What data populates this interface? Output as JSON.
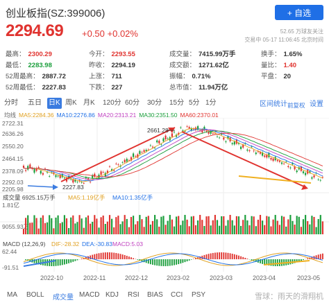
{
  "header": {
    "title": "创业板指(SZ:399006)",
    "follow_label": "+ 自选",
    "price": "2294.69",
    "change": "+0.50 +0.02%",
    "meta_line1": "52.65 万球友关注",
    "meta_line2": "交易中 05-17 11:06:45 北京时间"
  },
  "stats": [
    [
      [
        "最高：",
        "2300.29",
        "red"
      ],
      [
        "今开：",
        "2293.55",
        "red"
      ],
      [
        "成交量：",
        "7415.99万手",
        ""
      ],
      [
        "换手：",
        "1.65%",
        ""
      ]
    ],
    [
      [
        "最低：",
        "2283.98",
        "green"
      ],
      [
        "昨收：",
        "2294.19",
        ""
      ],
      [
        "成交额：",
        "1271.62亿",
        ""
      ],
      [
        "量比：",
        "1.40",
        "red"
      ]
    ],
    [
      [
        "52周最高：",
        "2887.72",
        ""
      ],
      [
        "上涨：",
        "711",
        ""
      ],
      [
        "振幅：",
        "0.71%",
        ""
      ],
      [
        "平盘：",
        "20",
        ""
      ]
    ],
    [
      [
        "52周最低：",
        "2227.83",
        ""
      ],
      [
        "下跌：",
        "227",
        ""
      ],
      [
        "总市值：",
        "11.94万亿",
        ""
      ],
      [
        "",
        "",
        ""
      ]
    ]
  ],
  "tabs": {
    "items": [
      "分时",
      "五日",
      "日K",
      "周K",
      "月K",
      "120分",
      "60分",
      "30分",
      "15分",
      "5分",
      "1分"
    ],
    "active": "日K",
    "expand": "区间统计",
    "settings": "设置",
    "fuquan": "前复权"
  },
  "ma_legend": [
    {
      "label": "均线",
      "color": "#666666"
    },
    {
      "label": "MA5:2284.36",
      "color": "#e0a020"
    },
    {
      "label": "MA10:2276.86",
      "color": "#1f6fe6"
    },
    {
      "label": "MA20:2313.21",
      "color": "#c040c0"
    },
    {
      "label": "MA30:2351.50",
      "color": "#1a9e3b"
    },
    {
      "label": "MA60:2370.01",
      "color": "#e0332f"
    }
  ],
  "chart_labels": {
    "y_top": "2722.31",
    "y2": "2636.26",
    "y3": "2550.20",
    "y4": "2464.15",
    "y5": "2378.09",
    "y6": "2292.03",
    "y_bottom": "2205.98",
    "peak_label": "2661.28",
    "low_label": "2227.83",
    "vol_legend": "成交量 6925.15万手",
    "vol_ma5": "MA5:1.19亿手",
    "vol_ma10": "MA10:1.35亿手",
    "vol_top": "1.81亿",
    "vol_mid": "9055.93万",
    "macd_legend": "MACD (12,26,9)",
    "macd_dif": "DIF:-28.32",
    "macd_dea": "DEA:-30.83",
    "macd_val": "MACD:5.03",
    "macd_top": "62.44",
    "macd_bottom": "-91.51"
  },
  "date_axis": [
    "2022-10",
    "2022-11",
    "2022-12",
    "2023-02",
    "2023-03",
    "2023-04",
    "2023-05"
  ],
  "bottom_tabs": {
    "items": [
      "MA",
      "BOLL",
      "成交量",
      "MACD",
      "KDJ",
      "RSI",
      "BIAS",
      "CCI",
      "PSY"
    ],
    "active": "成交量"
  },
  "watermark": "雪球：雨天的滑翔机",
  "colors": {
    "up": "#e0332f",
    "down": "#1a9e3b",
    "accent": "#1f6fe6"
  }
}
